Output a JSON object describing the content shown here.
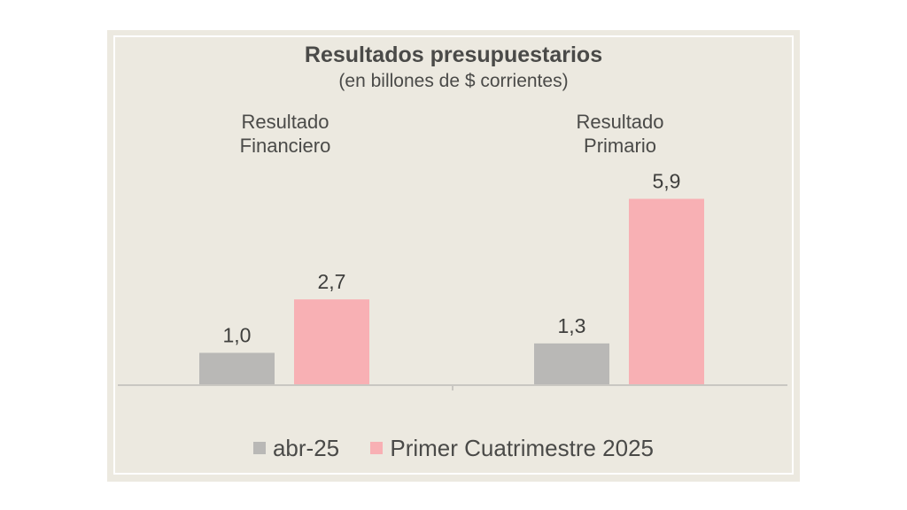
{
  "chart_data": {
    "type": "bar",
    "title": "Resultados presupuestarios",
    "subtitle": "(en billones de $ corrientes)",
    "categories": [
      {
        "line1": "Resultado",
        "line2": "Financiero"
      },
      {
        "line1": "Resultado",
        "line2": "Primario"
      }
    ],
    "series": [
      {
        "name": "abr-25",
        "color": "#b9b8b6",
        "values": [
          1.0,
          1.3
        ],
        "labels": [
          "1,0",
          "1,3"
        ]
      },
      {
        "name": "Primer Cuatrimestre 2025",
        "color": "#f8b0b4",
        "values": [
          2.7,
          5.9
        ],
        "labels": [
          "2,7",
          "5,9"
        ]
      }
    ],
    "ylim": [
      0,
      7
    ],
    "grid": false,
    "legend_position": "bottom"
  }
}
